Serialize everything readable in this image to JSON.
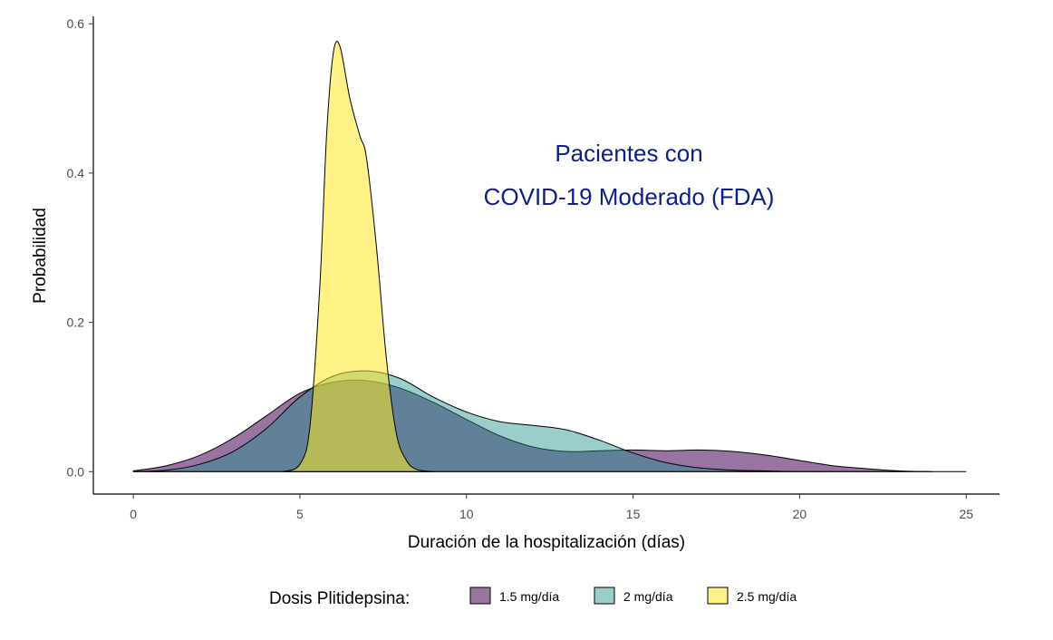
{
  "chart_data": {
    "type": "area",
    "title": "",
    "annotation": [
      "Pacientes con",
      "COVID-19 Moderado (FDA)"
    ],
    "xlabel": "Duración de la hospitalización (días)",
    "ylabel": "Probabilidad",
    "xlim": [
      -1.2,
      26.0
    ],
    "ylim": [
      -0.03,
      0.61
    ],
    "xticks": [
      0,
      5,
      10,
      15,
      20,
      25
    ],
    "xtick_labels": [
      "0",
      "5",
      "10",
      "15",
      "20",
      "25"
    ],
    "yticks": [
      0.0,
      0.2,
      0.4,
      0.6
    ],
    "ytick_labels": [
      "0.0",
      "0.2",
      "0.4",
      "0.6"
    ],
    "grid": false,
    "legend": {
      "title": "Dosis Plitidepsina:",
      "position": "bottom",
      "entries": [
        "1.5 mg/día",
        "2 mg/día",
        "2.5 mg/día"
      ]
    },
    "series": [
      {
        "name": "1.5 mg/día",
        "color": "#440154",
        "opacity": 0.55,
        "x": [
          0,
          1,
          2,
          3,
          4,
          5,
          6,
          7,
          8,
          9,
          10,
          11,
          12,
          13,
          14,
          15,
          16,
          17,
          18,
          19,
          20,
          21,
          22,
          23,
          24
        ],
        "y": [
          0.001,
          0.008,
          0.022,
          0.045,
          0.075,
          0.105,
          0.12,
          0.122,
          0.112,
          0.093,
          0.07,
          0.048,
          0.033,
          0.027,
          0.028,
          0.029,
          0.028,
          0.029,
          0.027,
          0.022,
          0.015,
          0.008,
          0.004,
          0.001,
          0.0
        ]
      },
      {
        "name": "2 mg/día",
        "color": "#21908c",
        "opacity": 0.45,
        "x": [
          0,
          1,
          2,
          3,
          4,
          5,
          6,
          7,
          8,
          9,
          10,
          11,
          12,
          13,
          14,
          15,
          16,
          17,
          18,
          19,
          20,
          21,
          22,
          23,
          24,
          25
        ],
        "y": [
          0.0,
          0.002,
          0.01,
          0.027,
          0.058,
          0.1,
          0.128,
          0.135,
          0.125,
          0.1,
          0.08,
          0.067,
          0.062,
          0.056,
          0.042,
          0.025,
          0.012,
          0.005,
          0.002,
          0.001,
          0.0,
          0.0,
          0.0,
          0.0,
          0.0,
          0.0
        ]
      },
      {
        "name": "2.5 mg/día",
        "color": "#fde725",
        "opacity": 0.55,
        "x": [
          4.5,
          5.0,
          5.3,
          5.6,
          5.8,
          6.0,
          6.2,
          6.5,
          6.8,
          7.0,
          7.3,
          7.6,
          7.9,
          8.2,
          8.5,
          9.0
        ],
        "y": [
          0.0,
          0.01,
          0.06,
          0.25,
          0.45,
          0.56,
          0.57,
          0.5,
          0.45,
          0.42,
          0.3,
          0.15,
          0.05,
          0.015,
          0.003,
          0.0
        ]
      }
    ]
  }
}
